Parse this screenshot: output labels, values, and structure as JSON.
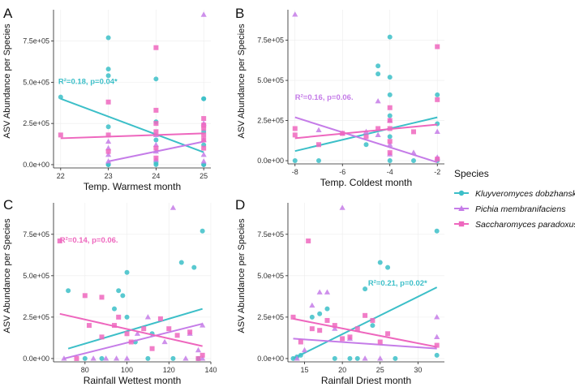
{
  "legend": {
    "title": "Species",
    "entries": [
      {
        "name": "Kluyveromyces dobzhanskii",
        "color": "#3CBFC8",
        "shape": "circle"
      },
      {
        "name": "Pichia membranifaciens",
        "color": "#C57CE8",
        "shape": "triangle"
      },
      {
        "name": "Saccharomyces paradoxus",
        "color": "#EE67BE",
        "shape": "square"
      }
    ]
  },
  "chart_data": [
    {
      "type": "scatter",
      "panel": "A",
      "xlabel": "Temp. Warmest month",
      "ylabel": "ASV Abundance per Species",
      "xlim": [
        21.85,
        25.15
      ],
      "ylim": [
        -20000,
        940000
      ],
      "xticks": [
        22,
        23,
        24,
        25
      ],
      "xtick_labels": [
        "22",
        "23",
        "24",
        "25"
      ],
      "yticks": [
        0,
        250000,
        500000,
        750000
      ],
      "ytick_labels": [
        "0.0e+00",
        "2.5e+05",
        "5.0e+05",
        "7.5e+05"
      ],
      "annotation": {
        "text": "R²=0.18, p=0.04*",
        "series": 0,
        "x": 21.95,
        "y": 490000
      },
      "series": [
        {
          "name": "Kluyveromyces dobzhanskii",
          "points": [
            [
              22,
              410000
            ],
            [
              23,
              770000
            ],
            [
              23,
              580000
            ],
            [
              23,
              540000
            ],
            [
              23,
              230000
            ],
            [
              23,
              0
            ],
            [
              23,
              0
            ],
            [
              24,
              520000
            ],
            [
              24,
              260000
            ],
            [
              24,
              150000
            ],
            [
              24,
              10000
            ],
            [
              24,
              0
            ],
            [
              25,
              400000
            ],
            [
              25,
              400000
            ],
            [
              25,
              200000
            ],
            [
              25,
              120000
            ],
            [
              25,
              0
            ],
            [
              25,
              0
            ]
          ],
          "fit": [
            [
              22,
              400000
            ],
            [
              25,
              75000
            ]
          ]
        },
        {
          "name": "Pichia membranifaciens",
          "points": [
            [
              23,
              140000
            ],
            [
              23,
              100000
            ],
            [
              23,
              60000
            ],
            [
              23,
              20000
            ],
            [
              24,
              180000
            ],
            [
              24,
              120000
            ],
            [
              24,
              80000
            ],
            [
              24,
              30000
            ],
            [
              25,
              910000
            ],
            [
              25,
              250000
            ],
            [
              25,
              150000
            ],
            [
              25,
              60000
            ],
            [
              25,
              20000
            ]
          ],
          "fit": [
            [
              23,
              20000
            ],
            [
              25,
              140000
            ]
          ]
        },
        {
          "name": "Saccharomyces paradoxus",
          "points": [
            [
              22,
              180000
            ],
            [
              23,
              380000
            ],
            [
              23,
              180000
            ],
            [
              23,
              80000
            ],
            [
              24,
              710000
            ],
            [
              24,
              330000
            ],
            [
              24,
              250000
            ],
            [
              24,
              200000
            ],
            [
              24,
              100000
            ],
            [
              24,
              40000
            ],
            [
              25,
              280000
            ],
            [
              25,
              240000
            ],
            [
              25,
              220000
            ],
            [
              25,
              180000
            ],
            [
              25,
              150000
            ],
            [
              25,
              100000
            ]
          ],
          "fit": [
            [
              22,
              160000
            ],
            [
              25,
              190000
            ]
          ]
        }
      ]
    },
    {
      "type": "scatter",
      "panel": "B",
      "xlabel": "Temp. Coldest month",
      "ylabel": "ASV Abundance per Species",
      "xlim": [
        -8.3,
        -1.7
      ],
      "ylim": [
        -20000,
        940000
      ],
      "xticks": [
        -8,
        -6,
        -4,
        -2
      ],
      "xtick_labels": [
        "-8",
        "-6",
        "-4",
        "-2"
      ],
      "yticks": [
        0,
        250000,
        500000,
        750000
      ],
      "ytick_labels": [
        "0.0e+00",
        "2.5e+05",
        "5.0e+05",
        "7.5e+05"
      ],
      "annotation": {
        "text": "R²=0.16, p=0.06.",
        "series": 1,
        "x": -8.0,
        "y": 380000
      },
      "series": [
        {
          "name": "Kluyveromyces dobzhanskii",
          "points": [
            [
              -8,
              0
            ],
            [
              -7,
              0
            ],
            [
              -5,
              100000
            ],
            [
              -4.5,
              590000
            ],
            [
              -4.5,
              540000
            ],
            [
              -4,
              770000
            ],
            [
              -4,
              520000
            ],
            [
              -4,
              410000
            ],
            [
              -4,
              280000
            ],
            [
              -4,
              150000
            ],
            [
              -4,
              0
            ],
            [
              -3,
              0
            ],
            [
              -2,
              410000
            ],
            [
              -2,
              230000
            ],
            [
              -2,
              0
            ]
          ],
          "fit": [
            [
              -8,
              60000
            ],
            [
              -2,
              270000
            ]
          ]
        },
        {
          "name": "Pichia membranifaciens",
          "points": [
            [
              -8,
              910000
            ],
            [
              -7,
              190000
            ],
            [
              -6,
              170000
            ],
            [
              -5,
              180000
            ],
            [
              -4.5,
              370000
            ],
            [
              -4.5,
              160000
            ],
            [
              -4,
              250000
            ],
            [
              -4,
              100000
            ],
            [
              -4,
              40000
            ],
            [
              -3,
              50000
            ],
            [
              -2,
              180000
            ],
            [
              -2,
              20000
            ]
          ],
          "fit": [
            [
              -8,
              270000
            ],
            [
              -2,
              -10000
            ]
          ]
        },
        {
          "name": "Saccharomyces paradoxus",
          "points": [
            [
              -8,
              200000
            ],
            [
              -8,
              160000
            ],
            [
              -7,
              100000
            ],
            [
              -6,
              170000
            ],
            [
              -5,
              150000
            ],
            [
              -4.5,
              200000
            ],
            [
              -4,
              330000
            ],
            [
              -4,
              250000
            ],
            [
              -4,
              200000
            ],
            [
              -4,
              120000
            ],
            [
              -4,
              50000
            ],
            [
              -3,
              180000
            ],
            [
              -2,
              710000
            ],
            [
              -2,
              380000
            ],
            [
              -2,
              10000
            ]
          ],
          "fit": [
            [
              -8,
              140000
            ],
            [
              -2,
              225000
            ]
          ]
        }
      ]
    },
    {
      "type": "scatter",
      "panel": "C",
      "xlabel": "Rainfall Wettest month",
      "ylabel": "ASV Abundance per Species",
      "xlim": [
        65,
        140
      ],
      "ylim": [
        -20000,
        940000
      ],
      "xticks": [
        80,
        100,
        120,
        140
      ],
      "xtick_labels": [
        "80",
        "100",
        "120",
        "140"
      ],
      "yticks": [
        0,
        250000,
        500000,
        750000
      ],
      "ytick_labels": [
        "0.0e+00",
        "2.5e+05",
        "5.0e+05",
        "7.5e+05"
      ],
      "annotation": {
        "text": "R²=0.14, p=0.06.",
        "series": 2,
        "x": 68,
        "y": 700000
      },
      "series": [
        {
          "name": "Kluyveromyces dobzhanskii",
          "points": [
            [
              72,
              410000
            ],
            [
              80,
              0
            ],
            [
              88,
              0
            ],
            [
              94,
              300000
            ],
            [
              96,
              410000
            ],
            [
              98,
              380000
            ],
            [
              100,
              520000
            ],
            [
              100,
              250000
            ],
            [
              104,
              100000
            ],
            [
              110,
              0
            ],
            [
              112,
              150000
            ],
            [
              122,
              0
            ],
            [
              126,
              580000
            ],
            [
              132,
              550000
            ],
            [
              134,
              0
            ],
            [
              136,
              770000
            ]
          ],
          "fit": [
            [
              72,
              60000
            ],
            [
              136,
              300000
            ]
          ]
        },
        {
          "name": "Pichia membranifaciens",
          "points": [
            [
              70,
              0
            ],
            [
              84,
              0
            ],
            [
              90,
              0
            ],
            [
              95,
              0
            ],
            [
              100,
              0
            ],
            [
              105,
              150000
            ],
            [
              110,
              250000
            ],
            [
              118,
              100000
            ],
            [
              122,
              910000
            ],
            [
              128,
              0
            ],
            [
              130,
              150000
            ],
            [
              134,
              50000
            ],
            [
              136,
              200000
            ],
            [
              136,
              0
            ]
          ],
          "fit": [
            [
              70,
              0
            ],
            [
              136,
              210000
            ]
          ]
        },
        {
          "name": "Saccharomyces paradoxus",
          "points": [
            [
              68,
              710000
            ],
            [
              76,
              0
            ],
            [
              80,
              380000
            ],
            [
              82,
              200000
            ],
            [
              88,
              370000
            ],
            [
              88,
              130000
            ],
            [
              94,
              200000
            ],
            [
              96,
              250000
            ],
            [
              100,
              150000
            ],
            [
              102,
              100000
            ],
            [
              108,
              180000
            ],
            [
              112,
              60000
            ],
            [
              116,
              240000
            ],
            [
              120,
              180000
            ],
            [
              124,
              140000
            ],
            [
              130,
              160000
            ],
            [
              134,
              0
            ],
            [
              136,
              20000
            ]
          ],
          "fit": [
            [
              68,
              270000
            ],
            [
              136,
              75000
            ]
          ]
        }
      ]
    },
    {
      "type": "scatter",
      "panel": "D",
      "xlabel": "Rainfall Driest month",
      "ylabel": "ASV Abundance per Species",
      "xlim": [
        12.8,
        33.5
      ],
      "ylim": [
        -20000,
        940000
      ],
      "xticks": [
        15,
        20,
        25,
        30
      ],
      "xtick_labels": [
        "15",
        "20",
        "25",
        "30"
      ],
      "yticks": [
        0,
        250000,
        500000,
        750000
      ],
      "ytick_labels": [
        "0.0e+00",
        "2.5e+05",
        "5.0e+05",
        "7.5e+05"
      ],
      "annotation": {
        "text": "R²=0.21, p=0.02*",
        "series": 0,
        "x": 23.4,
        "y": 440000
      },
      "series": [
        {
          "name": "Kluyveromyces dobzhanskii",
          "points": [
            [
              13.5,
              0
            ],
            [
              14,
              10000
            ],
            [
              14.5,
              20000
            ],
            [
              16,
              250000
            ],
            [
              17,
              270000
            ],
            [
              18,
              300000
            ],
            [
              19,
              0
            ],
            [
              21,
              0
            ],
            [
              22,
              0
            ],
            [
              23,
              420000
            ],
            [
              24,
              200000
            ],
            [
              25,
              580000
            ],
            [
              26,
              550000
            ],
            [
              27,
              0
            ],
            [
              32.5,
              770000
            ],
            [
              32.5,
              20000
            ]
          ],
          "fit": [
            [
              13.5,
              0
            ],
            [
              32.5,
              430000
            ]
          ]
        },
        {
          "name": "Pichia membranifaciens",
          "points": [
            [
              14,
              0
            ],
            [
              15,
              50000
            ],
            [
              16,
              320000
            ],
            [
              17,
              400000
            ],
            [
              18,
              400000
            ],
            [
              19,
              180000
            ],
            [
              20,
              910000
            ],
            [
              21,
              120000
            ],
            [
              23,
              0
            ],
            [
              25,
              0
            ],
            [
              32.5,
              250000
            ],
            [
              32.5,
              130000
            ]
          ],
          "fit": [
            [
              13.5,
              120000
            ],
            [
              32.5,
              60000
            ]
          ]
        },
        {
          "name": "Saccharomyces paradoxus",
          "points": [
            [
              13.5,
              250000
            ],
            [
              14.5,
              100000
            ],
            [
              15.5,
              710000
            ],
            [
              16,
              180000
            ],
            [
              17,
              170000
            ],
            [
              18,
              230000
            ],
            [
              19,
              200000
            ],
            [
              20,
              120000
            ],
            [
              21,
              130000
            ],
            [
              22,
              180000
            ],
            [
              23,
              260000
            ],
            [
              24,
              230000
            ],
            [
              25,
              100000
            ],
            [
              26,
              150000
            ],
            [
              32.5,
              80000
            ]
          ],
          "fit": [
            [
              13.5,
              240000
            ],
            [
              32.5,
              70000
            ]
          ]
        }
      ]
    }
  ],
  "panel_labels": [
    "A",
    "B",
    "C",
    "D"
  ]
}
